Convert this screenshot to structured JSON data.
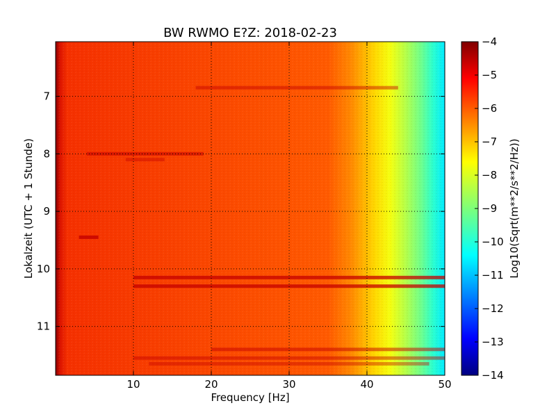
{
  "chart_data": {
    "type": "heatmap",
    "title": "BW RWMO E?Z: 2018-02-23",
    "xlabel": "Frequency [Hz]",
    "ylabel": "Lokalzeit (UTC + 1 Stunde)",
    "colorbar_label": "Log10(Sqrt(m**2/s**2/Hz))",
    "colormap": "jet",
    "xlim": [
      0,
      50
    ],
    "ylim": [
      6.05,
      11.85
    ],
    "y_inverted": true,
    "grid": true,
    "x_ticks": [
      10,
      20,
      30,
      40,
      50
    ],
    "y_ticks": [
      7,
      8,
      9,
      10,
      11
    ],
    "colorbar_range": [
      -14,
      -4
    ],
    "colorbar_ticks": [
      -4,
      -5,
      -6,
      -7,
      -8,
      -9,
      -10,
      -11,
      -12,
      -13,
      -14
    ],
    "spectrum_profile": {
      "frequency_hz": [
        0,
        0.6,
        1.5,
        5,
        10,
        20,
        30,
        36,
        38,
        40,
        42,
        44,
        46,
        48,
        50
      ],
      "log10_amplitude": [
        -5.0,
        -5.5,
        -5.9,
        -6.0,
        -6.0,
        -6.05,
        -6.1,
        -6.2,
        -6.5,
        -7.0,
        -7.6,
        -8.1,
        -8.6,
        -9.2,
        -10.0
      ]
    },
    "stripes": [
      {
        "time": 6.85,
        "from_hz": 18,
        "to_hz": 44,
        "delta": 0.45
      },
      {
        "time": 8.0,
        "from_hz": 4,
        "to_hz": 19,
        "delta": 0.55
      },
      {
        "time": 8.1,
        "from_hz": 9,
        "to_hz": 14,
        "delta": 0.4
      },
      {
        "time": 9.45,
        "from_hz": 3,
        "to_hz": 5.5,
        "delta": 0.8
      },
      {
        "time": 10.15,
        "from_hz": 10,
        "to_hz": 50,
        "delta": 0.75
      },
      {
        "time": 10.3,
        "from_hz": 10,
        "to_hz": 50,
        "delta": 0.75
      },
      {
        "time": 11.4,
        "from_hz": 20,
        "to_hz": 50,
        "delta": 0.5
      },
      {
        "time": 11.55,
        "from_hz": 10,
        "to_hz": 50,
        "delta": 0.45
      },
      {
        "time": 11.65,
        "from_hz": 12,
        "to_hz": 48,
        "delta": 0.4
      }
    ],
    "colors": {
      "background": "#ffffff",
      "axis": "#000000",
      "grid": "#000000"
    }
  }
}
